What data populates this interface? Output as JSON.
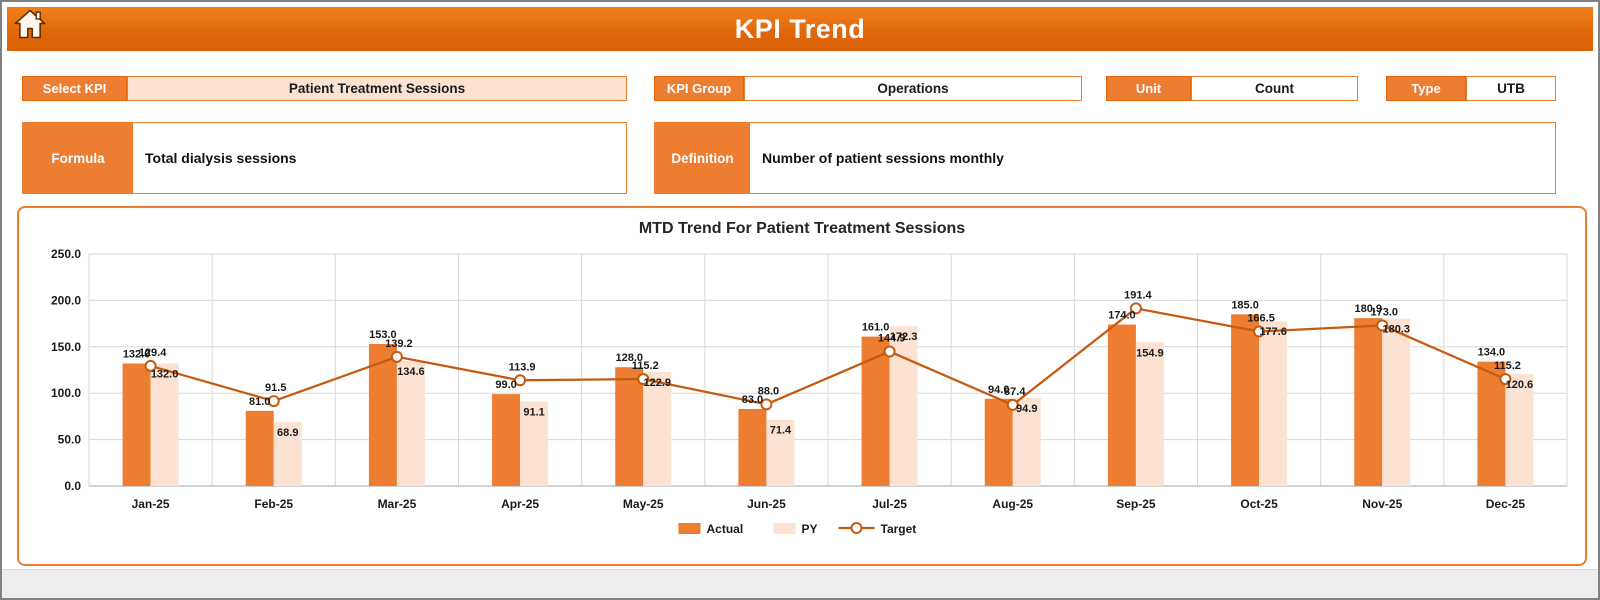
{
  "header": {
    "title": "KPI Trend"
  },
  "fields": {
    "select_kpi": {
      "label": "Select KPI",
      "value": "Patient Treatment Sessions"
    },
    "kpi_group": {
      "label": "KPI Group",
      "value": "Operations"
    },
    "unit": {
      "label": "Unit",
      "value": "Count"
    },
    "type": {
      "label": "Type",
      "value": "UTB"
    },
    "formula": {
      "label": "Formula",
      "value": "Total dialysis sessions"
    },
    "definition": {
      "label": "Definition",
      "value": "Number of patient sessions monthly"
    }
  },
  "chart_data": {
    "type": "bar",
    "combo": true,
    "title": "MTD Trend For Patient Treatment Sessions",
    "categories": [
      "Jan-25",
      "Feb-25",
      "Mar-25",
      "Apr-25",
      "May-25",
      "Jun-25",
      "Jul-25",
      "Aug-25",
      "Sep-25",
      "Oct-25",
      "Nov-25",
      "Dec-25"
    ],
    "series": [
      {
        "name": "Actual",
        "kind": "bar",
        "color": "#ED7D31",
        "values": [
          132.0,
          81.0,
          153.0,
          99.0,
          128.0,
          83.0,
          161.0,
          94.0,
          174.0,
          185.0,
          180.9,
          134.0
        ]
      },
      {
        "name": "PY",
        "kind": "bar",
        "color": "#FBE2D3",
        "values": [
          132.0,
          68.9,
          134.6,
          91.1,
          122.9,
          71.4,
          172.3,
          94.9,
          154.9,
          177.6,
          180.3,
          120.6
        ]
      },
      {
        "name": "Target",
        "kind": "line",
        "color": "#C55A11",
        "values": [
          129.4,
          91.5,
          139.2,
          113.9,
          115.2,
          88.0,
          144.9,
          87.4,
          191.4,
          166.5,
          173.0,
          115.2
        ]
      }
    ],
    "ylim": [
      0,
      250
    ],
    "yticks": [
      0,
      50,
      100,
      150,
      200,
      250
    ],
    "ytick_format": "one_decimal",
    "grid": true,
    "legend_position": "bottom"
  },
  "colors": {
    "accent": "#ED7D31",
    "header": "#E06609",
    "target_line": "#C55A11",
    "py_fill": "#FBE2D3",
    "field_fill": "#FBE2D3",
    "grid": "#D9D9D9",
    "text": "#1A1A1A"
  }
}
